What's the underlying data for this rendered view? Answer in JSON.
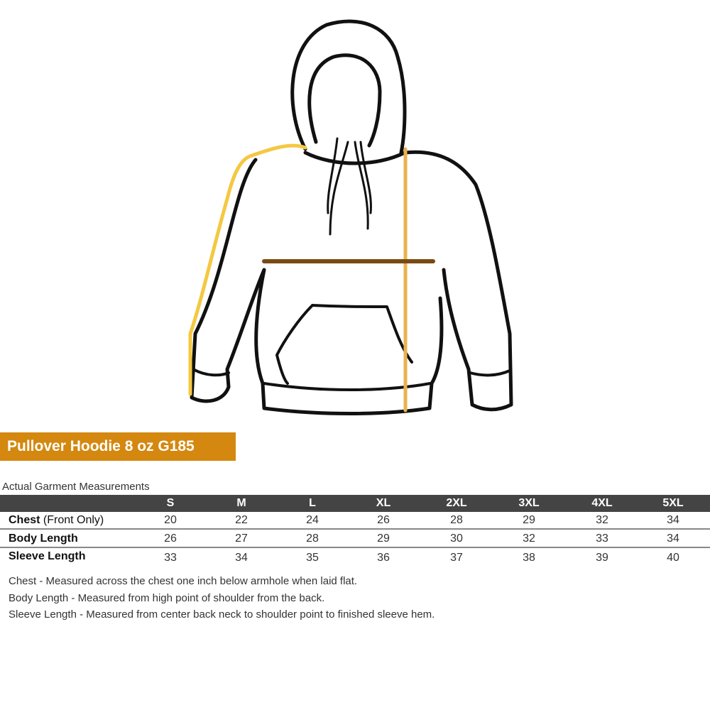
{
  "title": "Pullover Hoodie 8 oz G185",
  "caption": "Actual Garment Measurements",
  "colors": {
    "title_bg": "#d4880f",
    "header_bg": "#444444",
    "sleeve_line": "#f5c842",
    "chest_line": "#7a4a12",
    "body_line": "#e8b24e"
  },
  "sizes": [
    "S",
    "M",
    "L",
    "XL",
    "2XL",
    "3XL",
    "4XL",
    "5XL"
  ],
  "rows": [
    {
      "label": "Chest",
      "sub": "(Front Only)",
      "values": [
        "20",
        "22",
        "24",
        "26",
        "28",
        "29",
        "32",
        "34"
      ]
    },
    {
      "label": "Body Length",
      "sub": "",
      "values": [
        "26",
        "27",
        "28",
        "29",
        "30",
        "32",
        "33",
        "34"
      ]
    },
    {
      "label": "Sleeve Length",
      "sub": "",
      "values": [
        "33",
        "34",
        "35",
        "36",
        "37",
        "38",
        "39",
        "40"
      ]
    }
  ],
  "notes": [
    "Chest - Measured across the chest one inch below armhole when laid flat.",
    "Body Length - Measured from high point of shoulder from the back.",
    "Sleeve Length - Measured from center back neck to shoulder point to finished sleeve hem."
  ]
}
